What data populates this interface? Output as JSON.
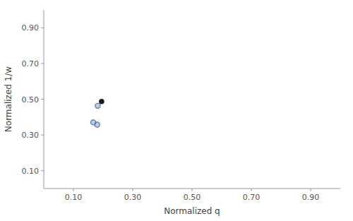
{
  "chart_data": {
    "type": "scatter",
    "title": "",
    "xlabel": "Normalized q",
    "ylabel": "Normalized 1/w",
    "xlim": [
      0.0,
      1.0
    ],
    "ylim": [
      0.0,
      1.0
    ],
    "xticks": [
      {
        "value": 0.1,
        "label": "0.10"
      },
      {
        "value": 0.3,
        "label": "0.30"
      },
      {
        "value": 0.5,
        "label": "0.50"
      },
      {
        "value": 0.7,
        "label": "0.70"
      },
      {
        "value": 0.9,
        "label": "0.90"
      }
    ],
    "yticks": [
      {
        "value": 0.1,
        "label": "0.10"
      },
      {
        "value": 0.3,
        "label": "0.30"
      },
      {
        "value": 0.5,
        "label": "0.50"
      },
      {
        "value": 0.7,
        "label": "0.70"
      },
      {
        "value": 0.9,
        "label": "0.90"
      }
    ],
    "grid": false,
    "series": [
      {
        "color": "#1a1a2e",
        "marker": "circle",
        "x": [
          0.195
        ],
        "values": [
          0.487
        ]
      },
      {
        "color": "#4a6fa5",
        "marker": "circle-open",
        "x": [
          0.182,
          0.167,
          0.18
        ],
        "values": [
          0.463,
          0.37,
          0.358
        ]
      }
    ]
  }
}
